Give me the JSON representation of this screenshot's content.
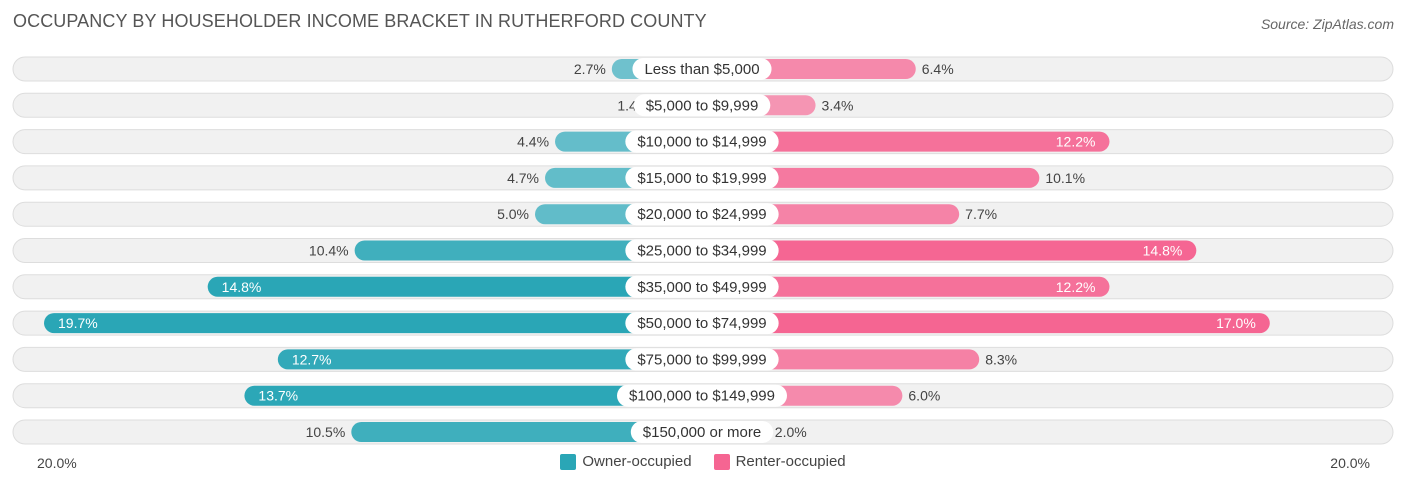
{
  "title": "OCCUPANCY BY HOUSEHOLDER INCOME BRACKET IN RUTHERFORD COUNTY",
  "source": "Source: ZipAtlas.com",
  "colors": {
    "owner": "#2aa6b6",
    "owner_light": "#7fc8d3",
    "renter": "#f56592",
    "renter_light": "#f5a3bd",
    "row_bg": "#f1f1f1",
    "row_border": "#dddddd"
  },
  "axis": {
    "left_label": "20.0%",
    "right_label": "20.0%"
  },
  "legend": {
    "owner": "Owner-occupied",
    "renter": "Renter-occupied"
  },
  "chart_data": {
    "type": "bar",
    "orientation": "horizontal-diverging",
    "xlim": [
      -20,
      20
    ],
    "categories": [
      "Less than $5,000",
      "$5,000 to $9,999",
      "$10,000 to $14,999",
      "$15,000 to $19,999",
      "$20,000 to $24,999",
      "$25,000 to $34,999",
      "$35,000 to $49,999",
      "$50,000 to $74,999",
      "$75,000 to $99,999",
      "$100,000 to $149,999",
      "$150,000 or more"
    ],
    "series": [
      {
        "name": "Owner-occupied",
        "values": [
          2.7,
          1.4,
          4.4,
          4.7,
          5.0,
          10.4,
          14.8,
          19.7,
          12.7,
          13.7,
          10.5
        ]
      },
      {
        "name": "Renter-occupied",
        "values": [
          6.4,
          3.4,
          12.2,
          10.1,
          7.7,
          14.8,
          12.2,
          17.0,
          8.3,
          6.0,
          2.0
        ]
      }
    ],
    "value_labels_owner": [
      "2.7%",
      "1.4%",
      "4.4%",
      "4.7%",
      "5.0%",
      "10.4%",
      "14.8%",
      "19.7%",
      "12.7%",
      "13.7%",
      "10.5%"
    ],
    "value_labels_renter": [
      "6.4%",
      "3.4%",
      "12.2%",
      "10.1%",
      "7.7%",
      "14.8%",
      "12.2%",
      "17.0%",
      "8.3%",
      "6.0%",
      "2.0%"
    ],
    "legend_position": "bottom"
  }
}
